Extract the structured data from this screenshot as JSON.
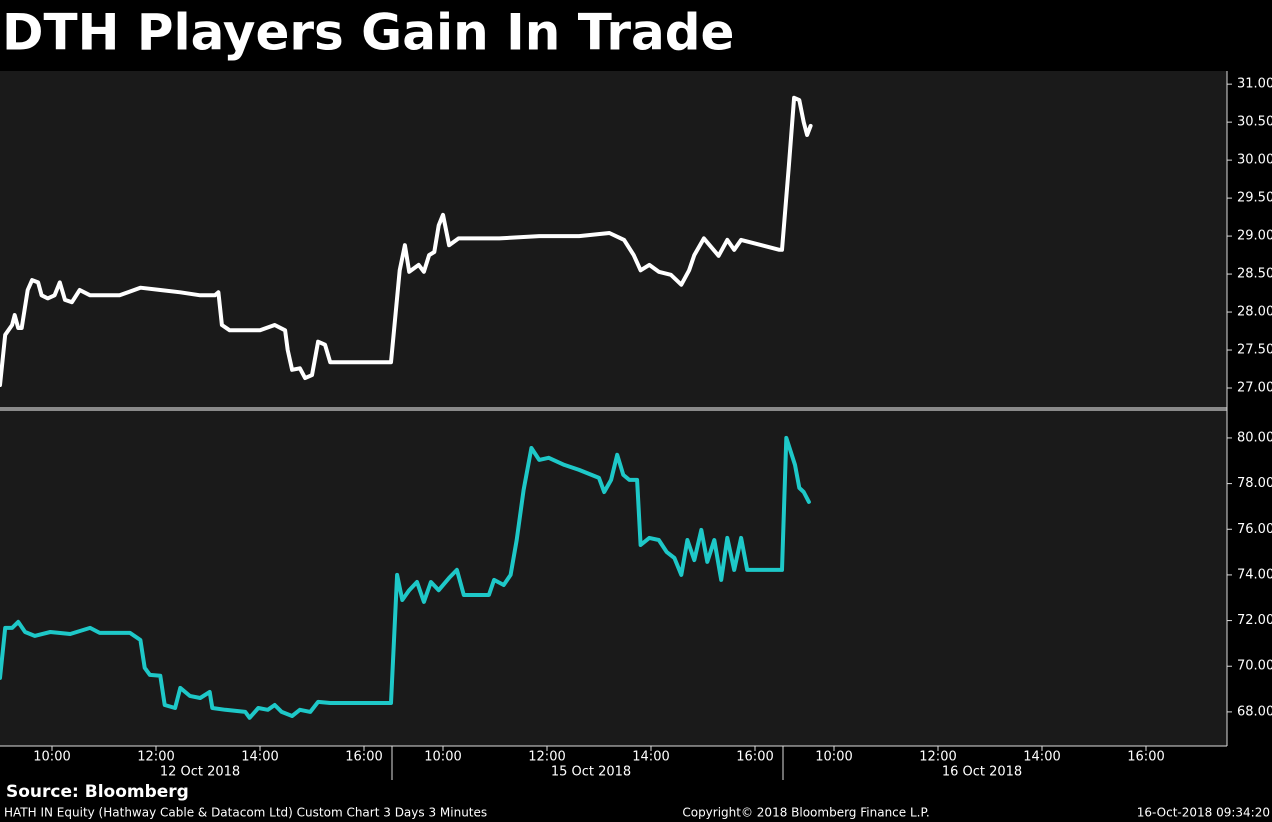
{
  "title": "DTH Players Gain In Trade",
  "source": "Source: Bloomberg",
  "footer": {
    "description": "HATH IN Equity (Hathway Cable & Datacom Ltd) Custom Chart 3 Days 3 Minutes",
    "copyright": "Copyright© 2018 Bloomberg Finance L.P.",
    "timestamp": "16-Oct-2018 09:34:20"
  },
  "chart_data": [
    {
      "type": "line",
      "color": "#ffffff",
      "x": [
        "12 Oct 2018 09:00",
        "12 Oct 2018 09:06",
        "12 Oct 2018 09:14",
        "12 Oct 2018 09:17",
        "12 Oct 2018 09:21",
        "12 Oct 2018 09:25",
        "12 Oct 2018 09:32",
        "12 Oct 2018 09:37",
        "12 Oct 2018 09:44",
        "12 Oct 2018 09:48",
        "12 Oct 2018 09:55",
        "12 Oct 2018 10:03",
        "12 Oct 2018 10:09",
        "12 Oct 2018 10:15",
        "12 Oct 2018 10:23",
        "12 Oct 2018 10:32",
        "12 Oct 2018 10:44",
        "12 Oct 2018 11:18",
        "12 Oct 2018 11:42",
        "12 Oct 2018 12:05",
        "12 Oct 2018 12:28",
        "12 Oct 2018 12:51",
        "12 Oct 2018 13:08",
        "12 Oct 2018 13:12",
        "12 Oct 2018 13:16",
        "12 Oct 2018 13:25",
        "12 Oct 2018 14:00",
        "12 Oct 2018 14:17",
        "12 Oct 2018 14:29",
        "12 Oct 2018 14:32",
        "12 Oct 2018 14:37",
        "12 Oct 2018 14:46",
        "12 Oct 2018 14:52",
        "12 Oct 2018 15:00",
        "12 Oct 2018 15:07",
        "12 Oct 2018 15:15",
        "12 Oct 2018 15:21",
        "12 Oct 2018 16:30",
        "15 Oct 2018 09:00",
        "15 Oct 2018 09:10",
        "15 Oct 2018 09:16",
        "15 Oct 2018 09:21",
        "15 Oct 2018 09:32",
        "15 Oct 2018 09:38",
        "15 Oct 2018 09:44",
        "15 Oct 2018 09:50",
        "15 Oct 2018 09:55",
        "15 Oct 2018 10:00",
        "15 Oct 2018 10:07",
        "15 Oct 2018 10:18",
        "15 Oct 2018 10:42",
        "15 Oct 2018 11:05",
        "15 Oct 2018 11:51",
        "15 Oct 2018 12:37",
        "15 Oct 2018 13:12",
        "15 Oct 2018 13:29",
        "15 Oct 2018 13:40",
        "15 Oct 2018 13:48",
        "15 Oct 2018 13:58",
        "15 Oct 2018 14:09",
        "15 Oct 2018 14:23",
        "15 Oct 2018 14:35",
        "15 Oct 2018 14:44",
        "15 Oct 2018 14:50",
        "15 Oct 2018 15:01",
        "15 Oct 2018 15:18",
        "15 Oct 2018 15:28",
        "15 Oct 2018 15:36",
        "15 Oct 2018 15:44",
        "15 Oct 2018 16:28",
        "16 Oct 2018 09:00",
        "16 Oct 2018 09:08",
        "16 Oct 2018 09:14",
        "16 Oct 2018 09:20",
        "16 Oct 2018 09:25",
        "16 Oct 2018 09:29",
        "16 Oct 2018 09:33"
      ],
      "values": [
        27.04,
        27.7,
        27.83,
        27.96,
        27.79,
        27.79,
        28.29,
        28.42,
        28.39,
        28.22,
        28.18,
        28.22,
        28.39,
        28.16,
        28.13,
        28.29,
        28.22,
        28.22,
        28.32,
        28.29,
        28.26,
        28.22,
        28.22,
        28.26,
        27.83,
        27.76,
        27.76,
        27.83,
        27.76,
        27.5,
        27.24,
        27.26,
        27.13,
        27.17,
        27.61,
        27.57,
        27.34,
        27.34,
        27.34,
        28.55,
        28.88,
        28.53,
        28.62,
        28.53,
        28.75,
        28.79,
        29.14,
        29.28,
        28.88,
        28.97,
        28.97,
        28.97,
        29.0,
        29.0,
        29.04,
        28.95,
        28.75,
        28.55,
        28.62,
        28.53,
        28.49,
        28.36,
        28.55,
        28.75,
        28.97,
        28.74,
        28.95,
        28.82,
        28.95,
        28.82,
        28.82,
        29.93,
        30.82,
        30.79,
        30.5,
        30.33,
        30.45
      ],
      "ylim": [
        26.75,
        31.16
      ],
      "yticks": [
        {
          "value": 27,
          "label": "27.00"
        },
        {
          "value": 27.5,
          "label": "27.50"
        },
        {
          "value": 28,
          "label": "28.00"
        },
        {
          "value": 28.5,
          "label": "28.50"
        },
        {
          "value": 29,
          "label": "29.00"
        },
        {
          "value": 29.5,
          "label": "29.50"
        },
        {
          "value": 30,
          "label": "30.00"
        },
        {
          "value": 30.5,
          "label": "30.50"
        },
        {
          "value": 31,
          "label": "31.00"
        }
      ]
    },
    {
      "type": "line",
      "color": "#1ec8c8",
      "x": [
        "12 Oct 2018 09:00",
        "12 Oct 2018 09:06",
        "12 Oct 2018 09:14",
        "12 Oct 2018 09:21",
        "12 Oct 2018 09:29",
        "12 Oct 2018 09:40",
        "12 Oct 2018 09:58",
        "12 Oct 2018 10:21",
        "12 Oct 2018 10:44",
        "12 Oct 2018 10:55",
        "12 Oct 2018 11:30",
        "12 Oct 2018 11:42",
        "12 Oct 2018 11:47",
        "12 Oct 2018 11:53",
        "12 Oct 2018 12:05",
        "12 Oct 2018 12:10",
        "12 Oct 2018 12:22",
        "12 Oct 2018 12:28",
        "12 Oct 2018 12:39",
        "12 Oct 2018 12:51",
        "12 Oct 2018 13:02",
        "12 Oct 2018 13:05",
        "12 Oct 2018 13:20",
        "12 Oct 2018 13:43",
        "12 Oct 2018 13:48",
        "12 Oct 2018 13:58",
        "12 Oct 2018 14:09",
        "12 Oct 2018 14:17",
        "12 Oct 2018 14:25",
        "12 Oct 2018 14:37",
        "12 Oct 2018 14:46",
        "12 Oct 2018 14:58",
        "12 Oct 2018 15:07",
        "12 Oct 2018 15:21",
        "12 Oct 2018 16:30",
        "15 Oct 2018 09:00",
        "15 Oct 2018 09:07",
        "15 Oct 2018 09:13",
        "15 Oct 2018 09:21",
        "15 Oct 2018 09:30",
        "15 Oct 2018 09:38",
        "15 Oct 2018 09:46",
        "15 Oct 2018 09:55",
        "15 Oct 2018 10:07",
        "15 Oct 2018 10:16",
        "15 Oct 2018 10:24",
        "15 Oct 2018 10:36",
        "15 Oct 2018 10:53",
        "15 Oct 2018 10:59",
        "15 Oct 2018 11:10",
        "15 Oct 2018 11:18",
        "15 Oct 2018 11:25",
        "15 Oct 2018 11:33",
        "15 Oct 2018 11:42",
        "15 Oct 2018 11:51",
        "15 Oct 2018 12:02",
        "15 Oct 2018 12:20",
        "15 Oct 2018 12:37",
        "15 Oct 2018 13:00",
        "15 Oct 2018 13:06",
        "15 Oct 2018 13:14",
        "15 Oct 2018 13:21",
        "15 Oct 2018 13:28",
        "15 Oct 2018 13:35",
        "15 Oct 2018 13:44",
        "15 Oct 2018 13:48",
        "15 Oct 2018 13:58",
        "15 Oct 2018 14:09",
        "15 Oct 2018 14:18",
        "15 Oct 2018 14:27",
        "15 Oct 2018 14:35",
        "15 Oct 2018 14:42",
        "15 Oct 2018 14:50",
        "15 Oct 2018 14:58",
        "15 Oct 2018 15:05",
        "15 Oct 2018 15:13",
        "15 Oct 2018 15:21",
        "15 Oct 2018 15:28",
        "15 Oct 2018 15:36",
        "15 Oct 2018 15:44",
        "15 Oct 2018 15:51",
        "15 Oct 2018 16:28",
        "16 Oct 2018 09:00",
        "16 Oct 2018 09:05",
        "16 Oct 2018 09:15",
        "16 Oct 2018 09:20",
        "16 Oct 2018 09:25",
        "16 Oct 2018 09:31"
      ],
      "values": [
        69.49,
        71.68,
        71.68,
        71.94,
        71.5,
        71.33,
        71.5,
        71.41,
        71.68,
        71.46,
        71.46,
        71.15,
        69.93,
        69.62,
        69.58,
        68.3,
        68.17,
        69.05,
        68.7,
        68.61,
        68.87,
        68.17,
        68.09,
        68.0,
        67.74,
        68.17,
        68.09,
        68.3,
        68.0,
        67.82,
        68.09,
        68.0,
        68.44,
        68.39,
        68.39,
        68.39,
        74.0,
        72.9,
        73.33,
        73.69,
        72.82,
        73.69,
        73.33,
        73.87,
        74.22,
        73.12,
        73.12,
        73.12,
        73.78,
        73.56,
        74.0,
        75.53,
        77.72,
        79.56,
        79.04,
        79.13,
        78.82,
        78.6,
        78.25,
        77.63,
        78.16,
        79.26,
        78.38,
        78.16,
        78.16,
        75.31,
        75.62,
        75.53,
        75.01,
        74.74,
        74.0,
        75.53,
        74.65,
        75.97,
        74.57,
        75.53,
        73.78,
        75.62,
        74.22,
        75.62,
        74.22,
        74.22,
        74.22,
        80.0,
        78.82,
        77.81,
        77.63,
        77.2
      ],
      "ylim": [
        66.55,
        81.18
      ],
      "yticks": [
        {
          "value": 68,
          "label": "68.00"
        },
        {
          "value": 70,
          "label": "70.00"
        },
        {
          "value": 72,
          "label": "72.00"
        },
        {
          "value": 74,
          "label": "74.00"
        },
        {
          "value": 76,
          "label": "76.00"
        },
        {
          "value": 78,
          "label": "78.00"
        },
        {
          "value": 80,
          "label": "80.00"
        }
      ],
      "days": [
        "12 Oct 2018",
        "15 Oct 2018",
        "16 Oct 2018"
      ],
      "xticks": [
        {
          "value": "12 Oct 2018 10:00",
          "label": "10:00"
        },
        {
          "value": "12 Oct 2018 12:00",
          "label": "12:00"
        },
        {
          "value": "12 Oct 2018 14:00",
          "label": "14:00"
        },
        {
          "value": "12 Oct 2018 16:00",
          "label": "16:00"
        },
        {
          "value": "15 Oct 2018 10:00",
          "label": "10:00"
        },
        {
          "value": "15 Oct 2018 12:00",
          "label": "12:00"
        },
        {
          "value": "15 Oct 2018 14:00",
          "label": "14:00"
        },
        {
          "value": "15 Oct 2018 16:00",
          "label": "16:00"
        },
        {
          "value": "16 Oct 2018 10:00",
          "label": "10:00"
        },
        {
          "value": "16 Oct 2018 12:00",
          "label": "12:00"
        },
        {
          "value": "16 Oct 2018 14:00",
          "label": "14:00"
        },
        {
          "value": "16 Oct 2018 16:00",
          "label": "16:00"
        }
      ]
    }
  ]
}
